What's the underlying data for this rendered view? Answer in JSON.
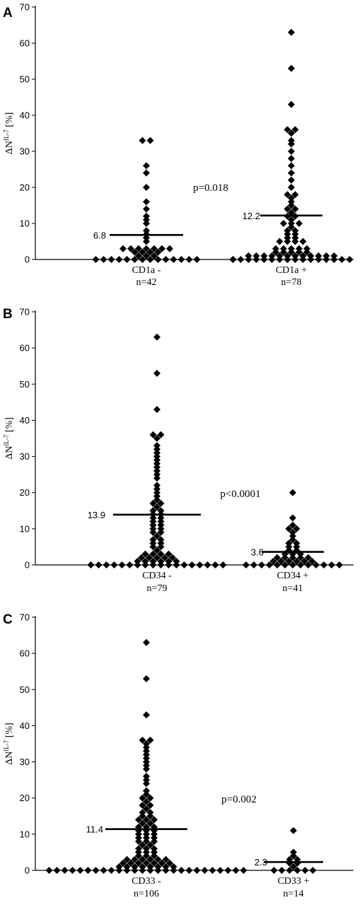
{
  "chart_data": [
    {
      "panel": "A",
      "type": "scatter",
      "ylabel_main": "ΔN",
      "ylabel_sup": "IL-7",
      "ylabel_unit": "[%]",
      "ylim": [
        0,
        70
      ],
      "yticks": [
        "0",
        "10",
        "20",
        "30",
        "40",
        "50",
        "60",
        "70"
      ],
      "p_value": "p=0.018",
      "groups": [
        {
          "label": "CD1a -",
          "n_label": "n=42",
          "mean_label": "6.8",
          "mean": 6.8,
          "values": [
            0,
            0,
            0,
            0,
            0,
            0,
            0,
            0,
            0,
            0,
            0,
            0,
            0,
            1,
            1,
            1,
            2,
            2,
            2,
            2,
            3,
            3,
            3,
            3,
            3,
            3,
            3,
            5,
            6,
            7,
            8,
            10,
            11,
            12,
            14,
            16,
            20,
            24,
            26,
            33,
            33,
            0
          ]
        },
        {
          "label": "CD1a +",
          "n_label": "n=78",
          "mean_label": "12.2",
          "mean": 12.2,
          "values": [
            0,
            0,
            0,
            0,
            0,
            0,
            0,
            0,
            0,
            0,
            0,
            0,
            0,
            0,
            0,
            0,
            0,
            1,
            1,
            1,
            1,
            1,
            1,
            1,
            1,
            1,
            1,
            1,
            1,
            2,
            2,
            2,
            2,
            2,
            3,
            3,
            3,
            3,
            3,
            5,
            5,
            5,
            5,
            6,
            6,
            7,
            7,
            8,
            9,
            10,
            10,
            10,
            11,
            12,
            12,
            13,
            14,
            14,
            15,
            16,
            17,
            18,
            18,
            20,
            22,
            24,
            26,
            28,
            30,
            32,
            33,
            35,
            36,
            36,
            43,
            53,
            63,
            8
          ]
        }
      ]
    },
    {
      "panel": "B",
      "type": "scatter",
      "ylabel_main": "ΔN",
      "ylabel_sup": "IL-7",
      "ylabel_unit": "[%]",
      "ylim": [
        0,
        70
      ],
      "yticks": [
        "0",
        "10",
        "20",
        "30",
        "40",
        "50",
        "60",
        "70"
      ],
      "p_value": "p<0.0001",
      "groups": [
        {
          "label": "CD34 -",
          "n_label": "n=79",
          "mean_label": "13.9",
          "mean": 13.9,
          "values": [
            0,
            0,
            0,
            0,
            0,
            0,
            0,
            0,
            0,
            0,
            0,
            0,
            0,
            0,
            0,
            0,
            0,
            0,
            1,
            1,
            1,
            1,
            1,
            1,
            2,
            2,
            2,
            2,
            2,
            3,
            3,
            3,
            3,
            4,
            5,
            5,
            6,
            6,
            7,
            8,
            9,
            10,
            10,
            11,
            12,
            12,
            13,
            14,
            14,
            15,
            16,
            17,
            18,
            20,
            22,
            24,
            26,
            28,
            30,
            32,
            33,
            35,
            36,
            36,
            43,
            53,
            63,
            7,
            9,
            11,
            13,
            15,
            17,
            19,
            21,
            25,
            27,
            29,
            31
          ]
        },
        {
          "label": "CD34 +",
          "n_label": "n=41",
          "mean_label": "3.6",
          "mean": 3.6,
          "values": [
            0,
            0,
            0,
            0,
            0,
            0,
            0,
            0,
            0,
            0,
            0,
            0,
            0,
            1,
            1,
            1,
            1,
            1,
            1,
            2,
            2,
            2,
            2,
            2,
            3,
            3,
            3,
            4,
            4,
            5,
            5,
            6,
            6,
            7,
            8,
            9,
            10,
            10,
            11,
            13,
            20
          ]
        }
      ]
    },
    {
      "panel": "C",
      "type": "scatter",
      "ylabel_main": "ΔN",
      "ylabel_sup": "IL-7",
      "ylabel_unit": "[%]",
      "ylim": [
        0,
        70
      ],
      "yticks": [
        "0",
        "10",
        "20",
        "30",
        "40",
        "50",
        "60",
        "70"
      ],
      "p_value": "p=0.002",
      "groups": [
        {
          "label": "CD33 -",
          "n_label": "n=106",
          "mean_label": "11.4",
          "mean": 11.4,
          "values": [
            0,
            0,
            0,
            0,
            0,
            0,
            0,
            0,
            0,
            0,
            0,
            0,
            0,
            0,
            0,
            0,
            0,
            0,
            0,
            0,
            0,
            0,
            0,
            0,
            0,
            0,
            1,
            1,
            1,
            1,
            1,
            1,
            1,
            1,
            2,
            2,
            2,
            2,
            2,
            2,
            2,
            3,
            3,
            3,
            3,
            3,
            3,
            4,
            4,
            4,
            5,
            5,
            5,
            6,
            6,
            6,
            7,
            7,
            8,
            8,
            9,
            9,
            10,
            10,
            10,
            11,
            11,
            12,
            12,
            12,
            13,
            13,
            14,
            14,
            14,
            15,
            15,
            16,
            16,
            17,
            18,
            18,
            19,
            20,
            20,
            22,
            24,
            25,
            26,
            28,
            29,
            30,
            31,
            32,
            33,
            34,
            35,
            36,
            36,
            43,
            53,
            63,
            8,
            9,
            11,
            21
          ]
        },
        {
          "label": "CD33 +",
          "n_label": "n=14",
          "mean_label": "2.3",
          "mean": 2.3,
          "values": [
            0,
            0,
            0,
            0,
            0,
            0,
            1,
            2,
            2,
            3,
            3,
            4,
            5,
            11
          ]
        }
      ]
    }
  ]
}
